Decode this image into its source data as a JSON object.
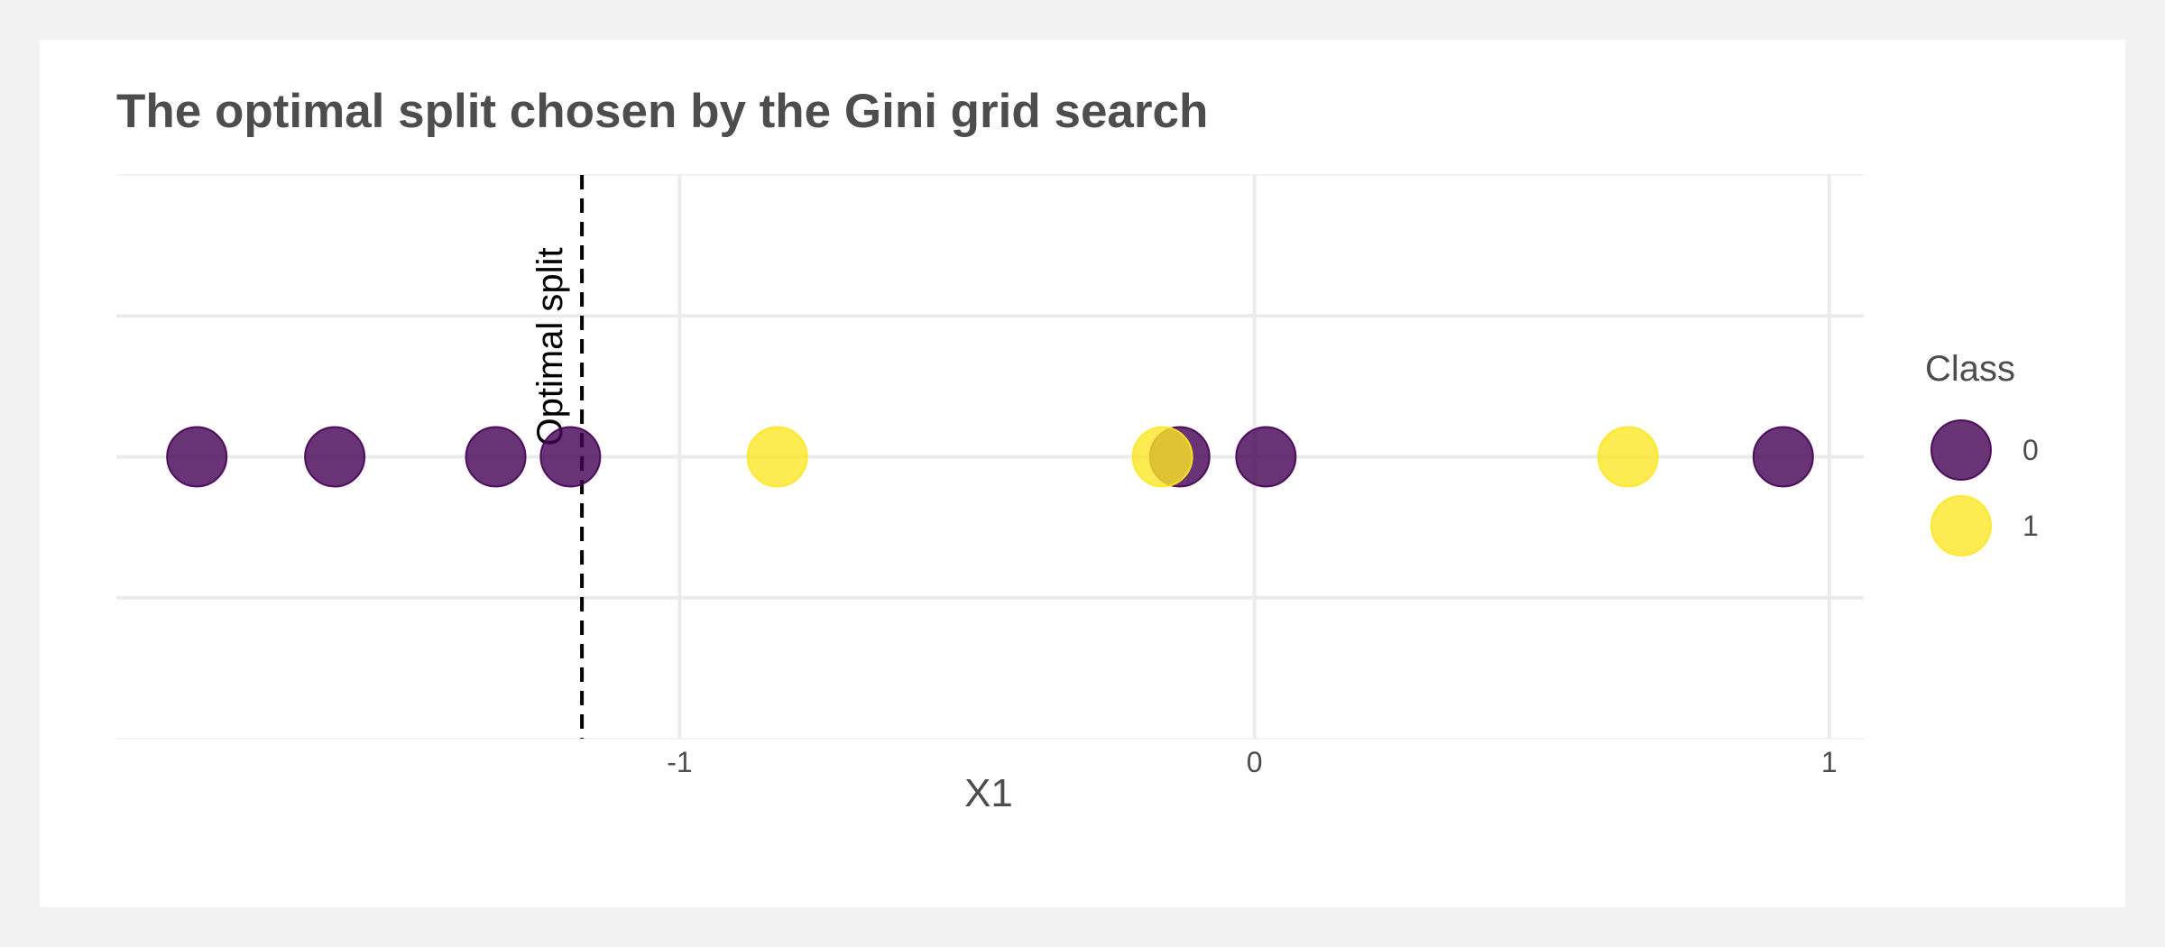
{
  "chart_data": {
    "type": "scatter",
    "title": "The optimal split chosen by the Gini grid search",
    "xlabel": "X1",
    "ylabel": "",
    "xlim": [
      -1.98,
      1.06
    ],
    "xticks": [
      -1,
      0,
      1
    ],
    "xtick_labels": [
      "-1",
      "0",
      "1"
    ],
    "grid": true,
    "legend": {
      "title": "Class",
      "position": "right",
      "entries": [
        {
          "label": "0",
          "color": "#440154"
        },
        {
          "label": "1",
          "color": "#FDE725"
        }
      ]
    },
    "series": [
      {
        "name": "0",
        "color": "#440154",
        "x": [
          -1.84,
          -1.6,
          -1.32,
          -1.19,
          -0.13,
          0.02,
          0.92
        ]
      },
      {
        "name": "1",
        "color": "#FDE725",
        "x": [
          -0.83,
          -0.16,
          0.65
        ]
      }
    ],
    "split": {
      "x": -1.17,
      "label": "Optimal split",
      "style": "dashed"
    }
  }
}
